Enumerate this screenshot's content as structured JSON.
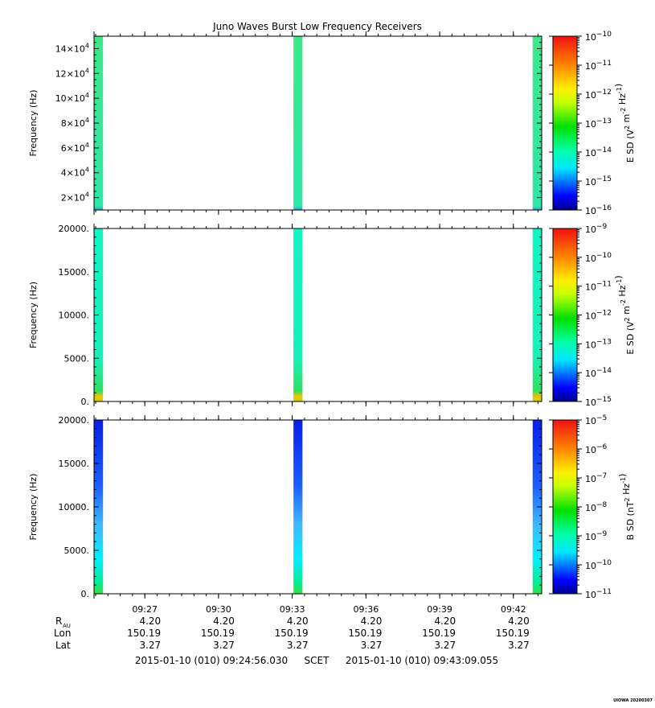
{
  "figure": {
    "title": "Juno Waves Burst Low Frequency Receivers",
    "time_start": "2015-01-10 (010) 09:24:56.030",
    "time_end": "2015-01-10 (010) 09:43:09.055",
    "scet_label": "SCET",
    "stamp": "UIOWA 20200307"
  },
  "chart_data": [
    {
      "type": "heatmap",
      "panel": "top",
      "ylabel": "Frequency (Hz)",
      "y_ticks": [
        "2x10^4",
        "4x10^4",
        "6x10^4",
        "8x10^4",
        "10x10^4",
        "12x10^4",
        "14x10^4"
      ],
      "ylim": [
        10000,
        150000
      ],
      "colorbar_label": "E SD (V^2 m^-2 Hz^-1)",
      "colorbar_exponents": [
        -16,
        -15,
        -14,
        -13,
        -12,
        -11,
        -10
      ],
      "data_columns": [
        {
          "start": "09:24:56",
          "end": "09:25:18",
          "level_exp": -13.7
        },
        {
          "start": "09:33:03",
          "end": "09:33:25",
          "level_exp": -13.7
        },
        {
          "start": "09:42:47",
          "end": "09:43:09",
          "level_exp": -13.7
        }
      ]
    },
    {
      "type": "heatmap",
      "panel": "middle",
      "ylabel": "Frequency (Hz)",
      "y_ticks": [
        "0.",
        "5000.",
        "10000.",
        "15000.",
        "20000."
      ],
      "ylim": [
        0,
        20000
      ],
      "colorbar_label": "E SD (V^2 m^-2 Hz^-1)",
      "colorbar_exponents": [
        -15,
        -14,
        -13,
        -12,
        -11,
        -10,
        -9
      ],
      "data_columns": [
        {
          "start": "09:24:56",
          "end": "09:25:18",
          "level_exp": -13.4
        },
        {
          "start": "09:33:03",
          "end": "09:33:25",
          "level_exp": -13.4
        },
        {
          "start": "09:42:47",
          "end": "09:43:09",
          "level_exp": -13.4
        }
      ]
    },
    {
      "type": "heatmap",
      "panel": "bottom",
      "ylabel": "Frequency (Hz)",
      "y_ticks": [
        "0.",
        "5000.",
        "10000.",
        "15000.",
        "20000."
      ],
      "ylim": [
        0,
        20000
      ],
      "colorbar_label": "B SD (nT^2 Hz^-1)",
      "colorbar_exponents": [
        -11,
        -10,
        -9,
        -8,
        -7,
        -6,
        -5
      ],
      "data_columns": [
        {
          "start": "09:24:56",
          "end": "09:25:18",
          "level_exp_low": -9.0,
          "level_exp_high": -10.6
        },
        {
          "start": "09:33:03",
          "end": "09:33:25",
          "level_exp_low": -9.0,
          "level_exp_high": -10.6
        },
        {
          "start": "09:42:47",
          "end": "09:43:09",
          "level_exp_low": -9.0,
          "level_exp_high": -10.6
        }
      ]
    }
  ],
  "x_axis": {
    "tick_labels": [
      "09:27",
      "09:30",
      "09:33",
      "09:36",
      "09:39",
      "09:42"
    ],
    "tick_minutes": [
      2.066,
      5.066,
      8.066,
      11.066,
      14.066,
      17.066
    ],
    "major_minutes": [
      0.0,
      2.066,
      5.066,
      8.066,
      11.066,
      14.066,
      17.066
    ],
    "span_minutes": 18.217
  },
  "ephemeris": {
    "labels": {
      "r_main": "R",
      "r_sub": "AU",
      "lon": "Lon",
      "lat": "Lat"
    },
    "r_au": [
      "4.20",
      "4.20",
      "4.20",
      "4.20",
      "4.20",
      "4.20"
    ],
    "lon": [
      "150.19",
      "150.19",
      "150.19",
      "150.19",
      "150.19",
      "150.19"
    ],
    "lat": [
      "3.27",
      "3.27",
      "3.27",
      "3.27",
      "3.27",
      "3.27"
    ]
  }
}
